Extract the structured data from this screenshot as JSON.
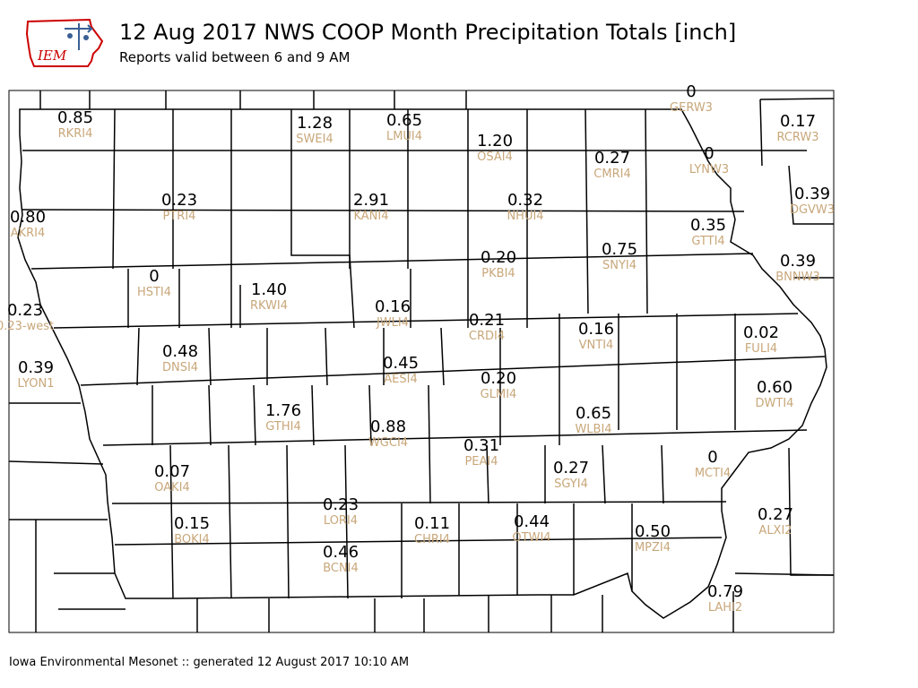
{
  "header": {
    "logo_text": "IEM",
    "title": "12 Aug 2017 NWS COOP Month Precipitation Totals [inch]",
    "subtitle": "Reports valid between 6 and 9 AM"
  },
  "footer": {
    "text": "Iowa Environmental Mesonet :: generated 12 August 2017 10:10 AM"
  },
  "colors": {
    "value_text": "#000000",
    "station_text": "#c8a77a",
    "county_lines": "#000000",
    "logo_red": "#cc0000",
    "logo_blue": "#3a5f95"
  },
  "stations": [
    {
      "id": "GERW3",
      "value": "0"
    },
    {
      "id": "RCRW3",
      "value": "0.17"
    },
    {
      "id": "RKRI4",
      "value": "0.85"
    },
    {
      "id": "SWEI4",
      "value": "1.28"
    },
    {
      "id": "LMUI4",
      "value": "0.65"
    },
    {
      "id": "OSAI4",
      "value": "1.20"
    },
    {
      "id": "CMRI4",
      "value": "0.27"
    },
    {
      "id": "LYNW3",
      "value": "0"
    },
    {
      "id": "DGVW3",
      "value": "0.39"
    },
    {
      "id": "PTRI4",
      "value": "0.23"
    },
    {
      "id": "KANI4",
      "value": "2.91"
    },
    {
      "id": "NHUI4",
      "value": "0.32"
    },
    {
      "id": "AKRI4",
      "value": "0.80"
    },
    {
      "id": "GTTI4",
      "value": "0.35"
    },
    {
      "id": "SNYI4",
      "value": "0.75"
    },
    {
      "id": "PKBI4",
      "value": "0.20"
    },
    {
      "id": "BNNW3",
      "value": "0.39"
    },
    {
      "id": "HSTI4",
      "value": "0"
    },
    {
      "id": "RKWI4",
      "value": "1.40"
    },
    {
      "id": "0.23-west",
      "value": "0.23"
    },
    {
      "id": "JWLI4",
      "value": "0.16"
    },
    {
      "id": "CRDI4",
      "value": "0.21"
    },
    {
      "id": "VNTI4",
      "value": "0.16"
    },
    {
      "id": "FULI4",
      "value": "0.02"
    },
    {
      "id": "DNSI4",
      "value": "0.48"
    },
    {
      "id": "AESI4",
      "value": "0.45"
    },
    {
      "id": "LYON1",
      "value": "0.39"
    },
    {
      "id": "GLMI4",
      "value": "0.20"
    },
    {
      "id": "DWTI4",
      "value": "0.60"
    },
    {
      "id": "GTHI4",
      "value": "1.76"
    },
    {
      "id": "WLBI4",
      "value": "0.65"
    },
    {
      "id": "WGCI4",
      "value": "0.88"
    },
    {
      "id": "PEAI4",
      "value": "0.31"
    },
    {
      "id": "MCTI4",
      "value": "0"
    },
    {
      "id": "OAKI4",
      "value": "0.07"
    },
    {
      "id": "SGYI4",
      "value": "0.27"
    },
    {
      "id": "LORI4",
      "value": "0.23"
    },
    {
      "id": "ALXI2",
      "value": "0.27"
    },
    {
      "id": "BOKI4",
      "value": "0.15"
    },
    {
      "id": "CHRI4",
      "value": "0.11"
    },
    {
      "id": "OTWI4",
      "value": "0.44"
    },
    {
      "id": "MPZI4",
      "value": "0.50"
    },
    {
      "id": "BCNI4",
      "value": "0.46"
    },
    {
      "id": "LAHI2",
      "value": "0.79"
    }
  ]
}
